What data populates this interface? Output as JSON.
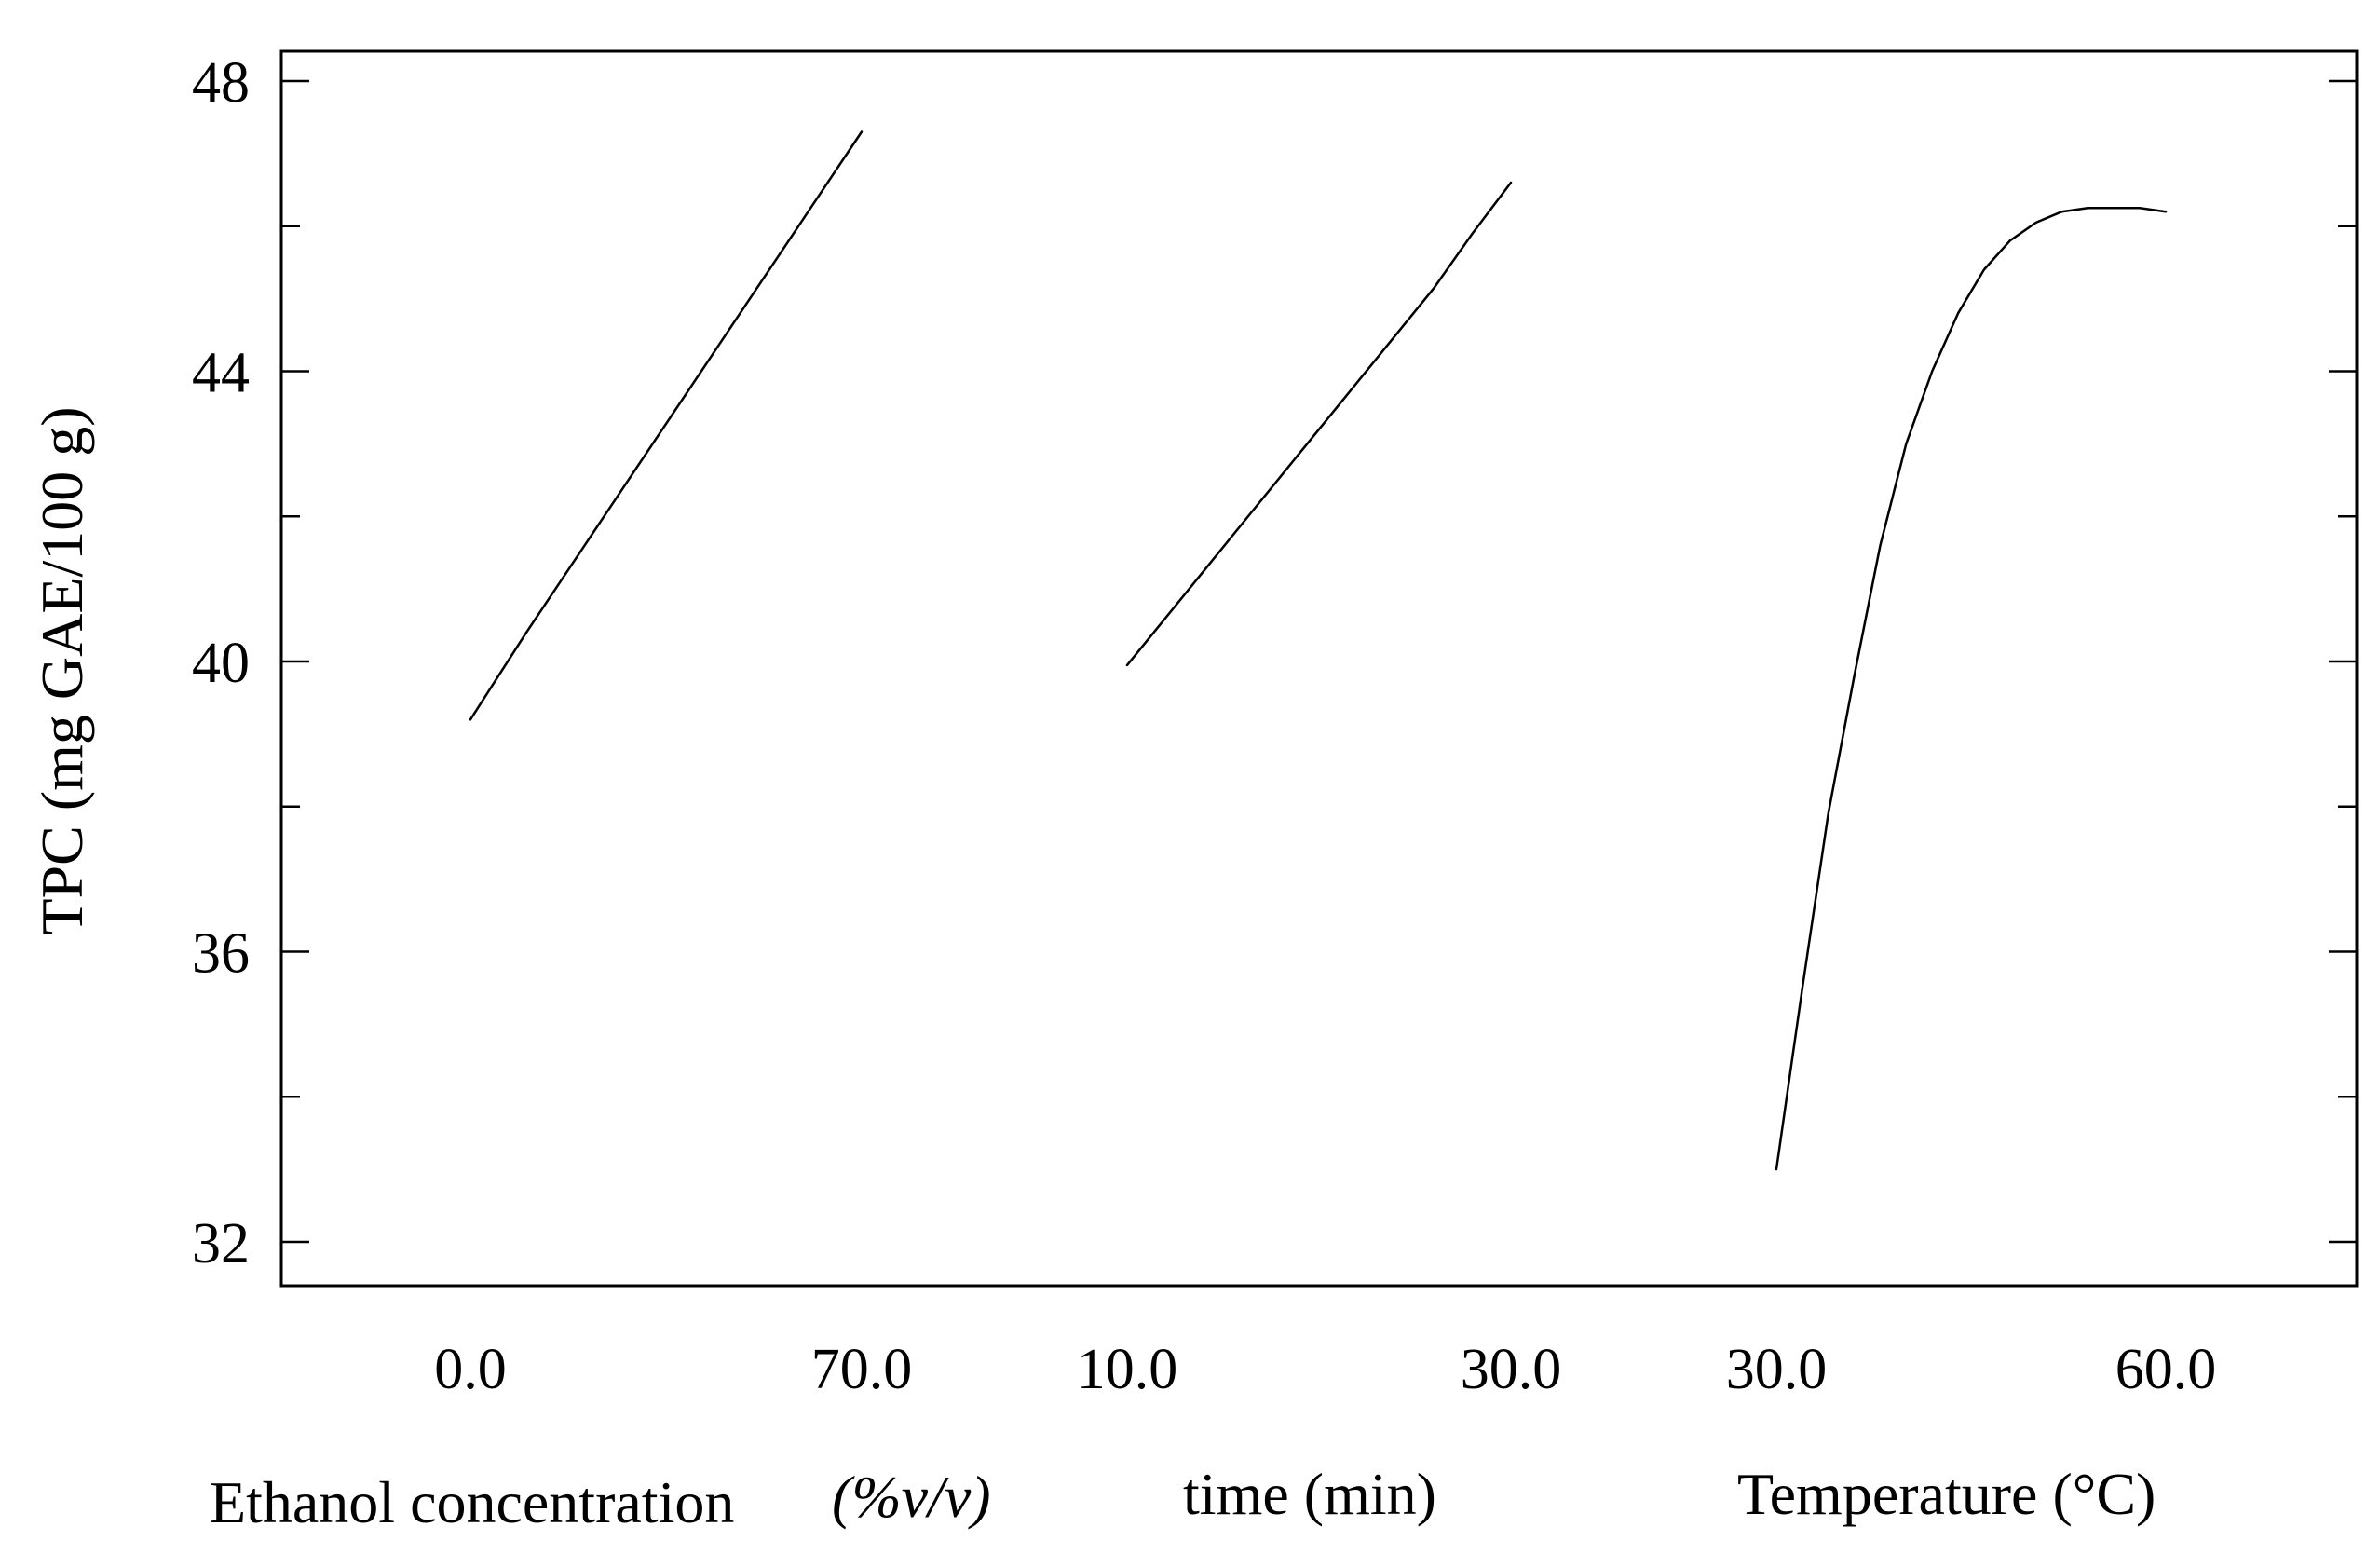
{
  "chart_data": {
    "type": "line",
    "title": "",
    "ylabel": "TPC (mg GAE/100 g)",
    "ylim": [
      31.5,
      48.5
    ],
    "yticks": [
      32,
      36,
      40,
      44,
      48
    ],
    "grid": false,
    "panels": [
      {
        "name": "Ethanol concentration",
        "xlabel": "Ethanol concentration",
        "xlabel_unit": "(%v/v)",
        "xlim": [
          0,
          70
        ],
        "xtick_labels": [
          "0.0",
          "70.0"
        ],
        "x": [
          0,
          10,
          20,
          30,
          40,
          50,
          60,
          70
        ],
        "y": [
          39.2,
          40.4,
          41.55,
          42.7,
          43.85,
          45.0,
          46.15,
          47.3
        ]
      },
      {
        "name": "time",
        "xlabel": "time (min)",
        "xlim": [
          10,
          30
        ],
        "xtick_labels": [
          "10.0",
          "30.0"
        ],
        "x": [
          10,
          12,
          14,
          16,
          18,
          20,
          22,
          24,
          26,
          28,
          30
        ],
        "y": [
          39.95,
          40.6,
          41.25,
          41.9,
          42.55,
          43.2,
          43.85,
          44.5,
          45.15,
          45.9,
          46.6
        ]
      },
      {
        "name": "Temperature",
        "xlabel": "Temperature (°C)",
        "xlim": [
          30,
          60
        ],
        "xtick_labels": [
          "30.0",
          "60.0"
        ],
        "x": [
          30,
          32,
          34,
          36,
          38,
          40,
          42,
          44,
          46,
          48,
          50,
          52,
          54,
          56,
          58,
          60
        ],
        "y": [
          33.0,
          35.5,
          37.9,
          39.8,
          41.6,
          43.0,
          44.0,
          44.8,
          45.4,
          45.8,
          46.05,
          46.2,
          46.25,
          46.25,
          46.25,
          46.2
        ]
      }
    ]
  }
}
